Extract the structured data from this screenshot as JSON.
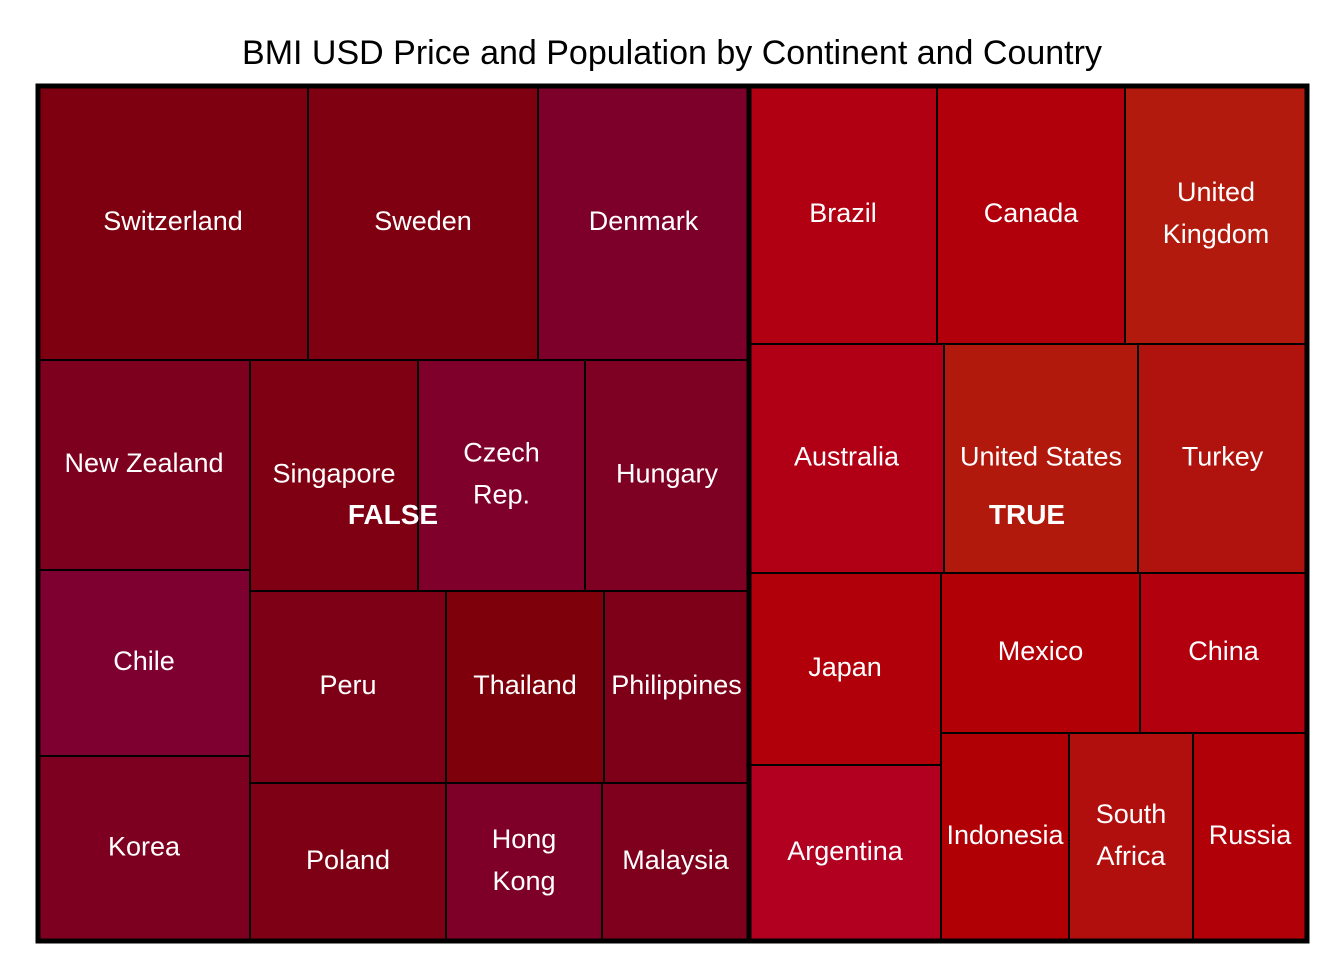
{
  "chart_data": {
    "type": "treemap",
    "title": "BMI USD Price and Population by Continent and Country",
    "groups": [
      {
        "name": "FALSE",
        "items": [
          {
            "label": [
              "Switzerland"
            ],
            "color": "#7E0010"
          },
          {
            "label": [
              "Sweden"
            ],
            "color": "#7E0011"
          },
          {
            "label": [
              "Denmark"
            ],
            "color": "#7D002A"
          },
          {
            "label": [
              "New Zealand"
            ],
            "color": "#7D001E"
          },
          {
            "label": [
              "Chile"
            ],
            "color": "#7E0030"
          },
          {
            "label": [
              "Korea"
            ],
            "color": "#7E0020"
          },
          {
            "label": [
              "Singapore"
            ],
            "color": "#7E0012"
          },
          {
            "label": [
              "Czech",
              "Rep."
            ],
            "color": "#7E002B"
          },
          {
            "label": [
              "Hungary"
            ],
            "color": "#7E0023"
          },
          {
            "label": [
              "Peru"
            ],
            "color": "#7E0016"
          },
          {
            "label": [
              "Thailand"
            ],
            "color": "#7E000B"
          },
          {
            "label": [
              "Philippines"
            ],
            "color": "#7E0018"
          },
          {
            "label": [
              "Poland"
            ],
            "color": "#7E0014"
          },
          {
            "label": [
              "Hong",
              "Kong"
            ],
            "color": "#7E0028"
          },
          {
            "label": [
              "Malaysia"
            ],
            "color": "#7E001D"
          }
        ]
      },
      {
        "name": "TRUE",
        "items": [
          {
            "label": [
              "Brazil"
            ],
            "color": "#B00012"
          },
          {
            "label": [
              "Canada"
            ],
            "color": "#B1000C"
          },
          {
            "label": [
              "United",
              "Kingdom"
            ],
            "color": "#B11A0C"
          },
          {
            "label": [
              "Australia"
            ],
            "color": "#B10016"
          },
          {
            "label": [
              "United States"
            ],
            "color": "#B0190C"
          },
          {
            "label": [
              "Turkey"
            ],
            "color": "#B0120E"
          },
          {
            "label": [
              "Japan"
            ],
            "color": "#B10009"
          },
          {
            "label": [
              "Mexico"
            ],
            "color": "#B10006"
          },
          {
            "label": [
              "China"
            ],
            "color": "#B2000F"
          },
          {
            "label": [
              "Argentina"
            ],
            "color": "#B10020"
          },
          {
            "label": [
              "Indonesia"
            ],
            "color": "#B00005"
          },
          {
            "label": [
              "South",
              "Africa"
            ],
            "color": "#B10F0E"
          },
          {
            "label": [
              "Russia"
            ],
            "color": "#B10008"
          }
        ]
      }
    ]
  }
}
